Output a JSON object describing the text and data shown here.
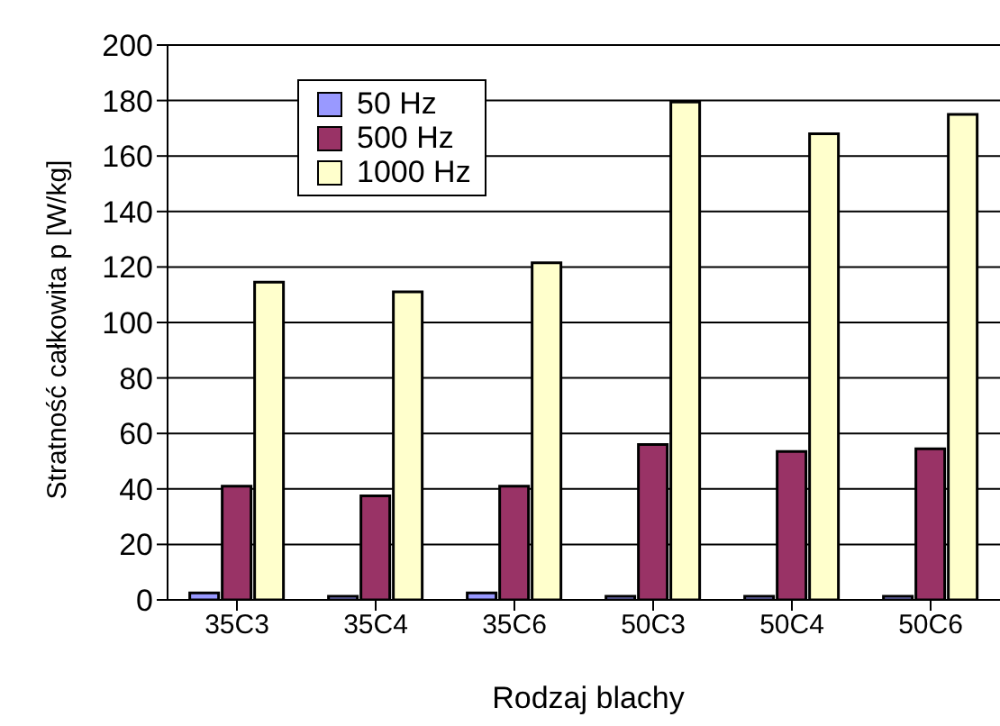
{
  "chart_data": {
    "type": "bar",
    "xlabel": "Rodzaj blachy",
    "ylabel": "Stratność całkowita p [W/kg]",
    "categories": [
      "35C3",
      "35C4",
      "35C6",
      "50C3",
      "50C4",
      "50C6"
    ],
    "series": [
      {
        "name": "50 Hz",
        "color": "#9999ff",
        "values": [
          2.5,
          1.3,
          2.5,
          1.3,
          1.3,
          1.3
        ]
      },
      {
        "name": "500 Hz",
        "color": "#993366",
        "values": [
          41,
          37.5,
          41,
          56,
          53.5,
          54.5
        ]
      },
      {
        "name": "1000 Hz",
        "color": "#ffffcc",
        "values": [
          114.5,
          111,
          121.5,
          179.5,
          168,
          175
        ]
      }
    ],
    "ylim": [
      0,
      200
    ],
    "yticks": [
      0,
      20,
      40,
      60,
      80,
      100,
      120,
      140,
      160,
      180,
      200
    ],
    "grid": "y",
    "legend": "top left"
  }
}
